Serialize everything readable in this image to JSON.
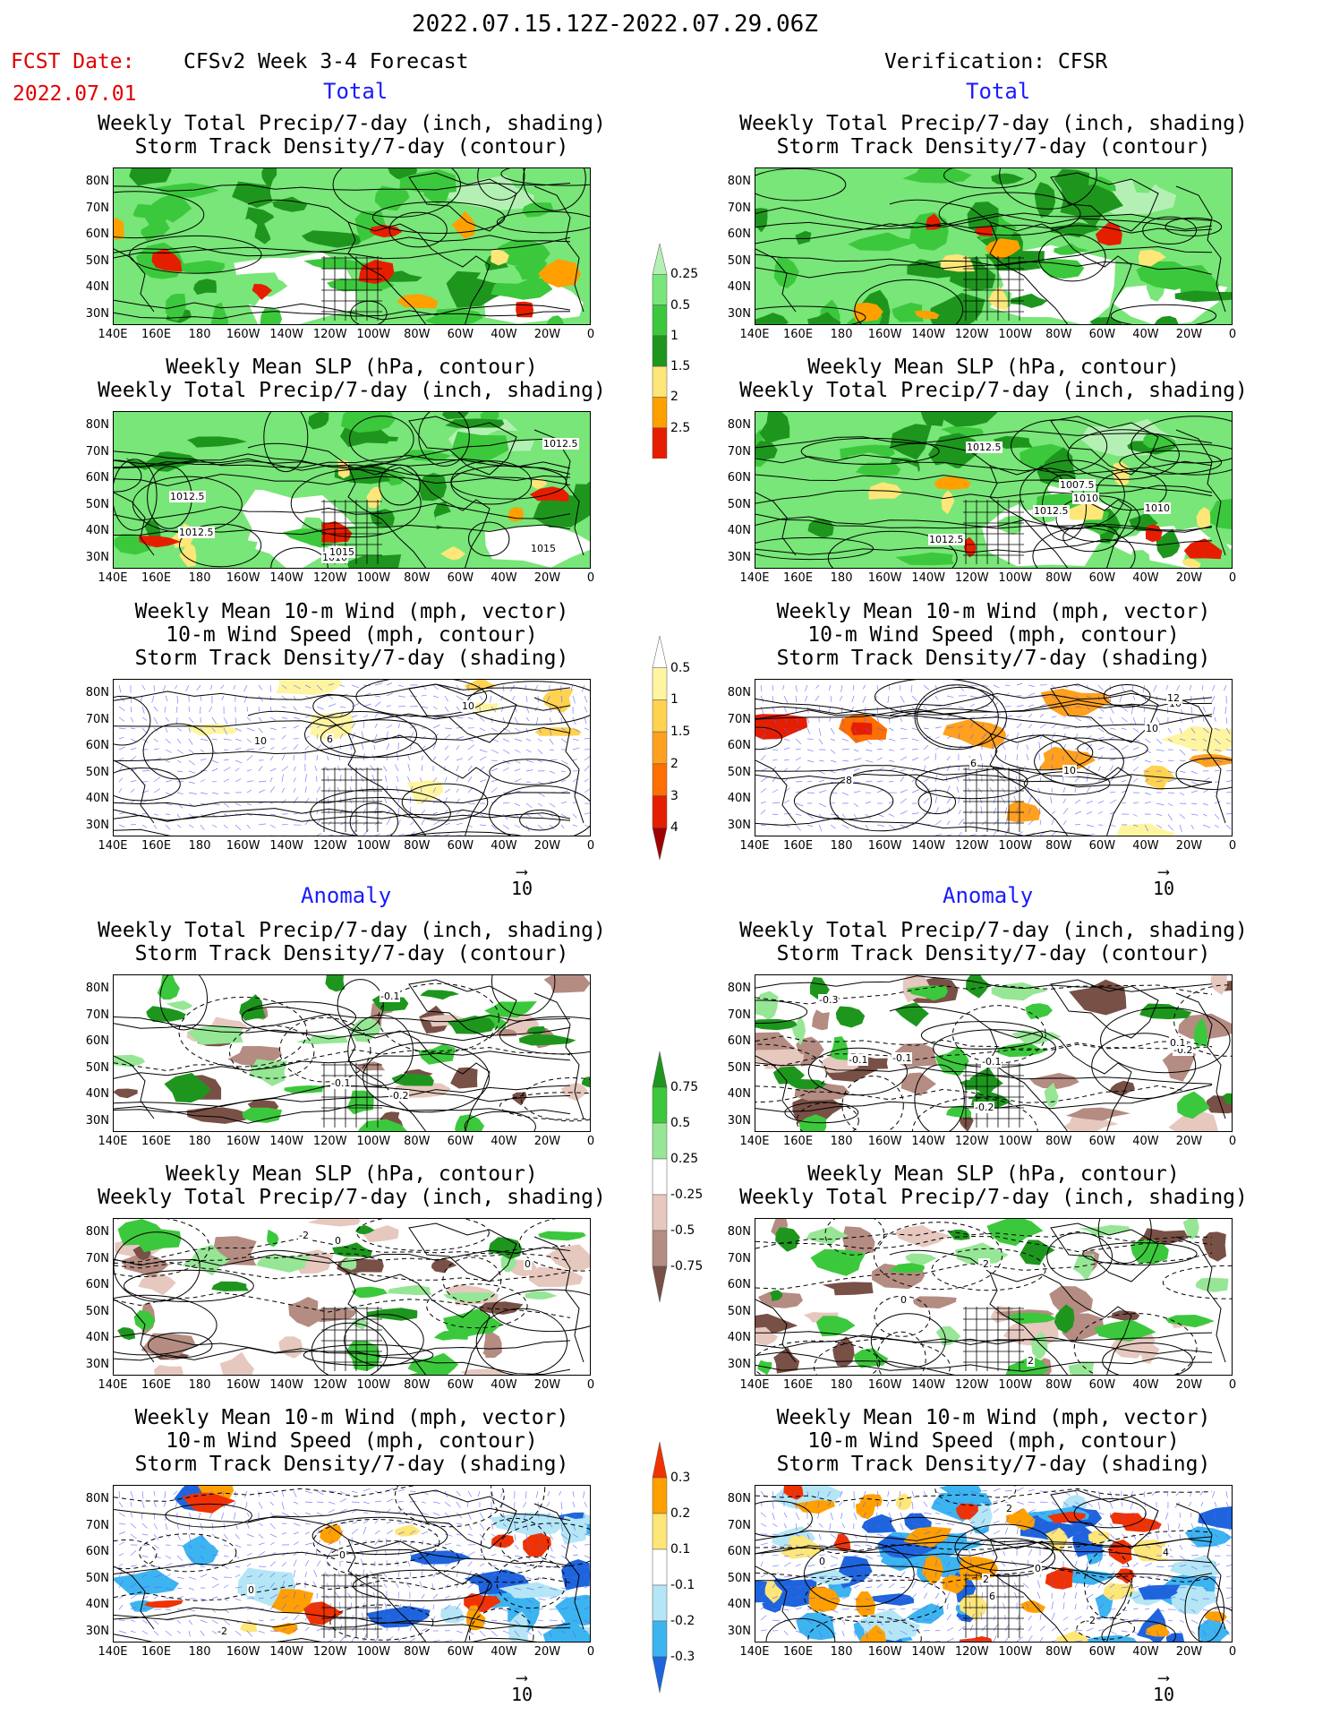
{
  "header": {
    "date_range": "2022.07.15.12Z-2022.07.29.06Z",
    "fcst_label": "FCST Date:",
    "fcst_date": "2022.07.01",
    "left_model": "CFSv2 Week 3-4 Forecast",
    "right_model": "Verification: CFSR"
  },
  "sections": {
    "total": "Total",
    "anomaly": "Anomaly"
  },
  "panel_titles": {
    "precip_storm": [
      "Weekly Total Precip/7-day (inch, shading)",
      "Storm Track Density/7-day (contour)"
    ],
    "slp_precip": [
      "Weekly Mean SLP (hPa, contour)",
      "Weekly Total Precip/7-day (inch, shading)"
    ],
    "wind_storm": [
      "Weekly Mean 10-m Wind (mph, vector)",
      "10-m Wind Speed (mph, contour)",
      "Storm Track Density/7-day (shading)"
    ]
  },
  "axes": {
    "lat_labels": [
      "80N",
      "70N",
      "60N",
      "50N",
      "40N",
      "30N"
    ],
    "lon_labels": [
      "140E",
      "160E",
      "180",
      "160W",
      "140W",
      "120W",
      "100W",
      "80W",
      "60W",
      "40W",
      "20W",
      "0"
    ]
  },
  "vector_ref": "10",
  "colorbars": {
    "total_precip": {
      "labels": [
        "0.25",
        "0.5",
        "1",
        "1.5",
        "2",
        "2.5"
      ],
      "colors": [
        "#b4f0b4",
        "#78e678",
        "#3cc83c",
        "#1e961e",
        "#ffe678",
        "#ffa000",
        "#e61e00"
      ]
    },
    "total_storm": {
      "labels": [
        "0.5",
        "1",
        "1.5",
        "2",
        "3",
        "4"
      ],
      "colors": [
        "#ffffff",
        "#fff5a0",
        "#ffd250",
        "#ffa01e",
        "#ff6e00",
        "#e61e00",
        "#a00000"
      ]
    },
    "anom_precip": {
      "labels": [
        "0.75",
        "0.5",
        "0.25",
        "-0.25",
        "-0.5",
        "-0.75"
      ],
      "colors": [
        "#1e961e",
        "#3cc83c",
        "#96e696",
        "#ffffff",
        "#e6c8be",
        "#b48c82",
        "#785046"
      ]
    },
    "anom_storm": {
      "labels": [
        "0.3",
        "0.2",
        "0.1",
        "-0.1",
        "-0.2",
        "-0.3"
      ],
      "colors": [
        "#f03200",
        "#ffa000",
        "#ffe678",
        "#ffffff",
        "#b4e6f5",
        "#3cb4f0",
        "#1e64dc"
      ]
    }
  },
  "contour_labels": {
    "total_slp_left": [
      "1010",
      "1012.5",
      "1015",
      "1012.5",
      "1012.5",
      "1015"
    ],
    "total_slp_right": [
      "1012.5",
      "1010",
      "1012.5",
      "1007.5",
      "1010",
      "1012.5"
    ],
    "total_wind_left": [
      "6",
      "10",
      "10"
    ],
    "total_wind_right": [
      "6",
      "10",
      "10",
      "10",
      "12",
      "8"
    ],
    "anom_precip_left": [
      "-0.1",
      "-0.1",
      "-0.2"
    ],
    "anom_precip_right": [
      "-0.2",
      "-0.1",
      "-0.1",
      "-0.3",
      "-0.1",
      "-0.2",
      "0.1"
    ],
    "anom_slp_left": [
      "0",
      "-2",
      "0"
    ],
    "anom_slp_right": [
      "-2",
      "0",
      "2"
    ],
    "anom_wind_left": [
      "0",
      "-2",
      "0"
    ],
    "anom_wind_right": [
      "2",
      "0",
      "4",
      "6",
      "0",
      "2",
      "-2"
    ]
  }
}
